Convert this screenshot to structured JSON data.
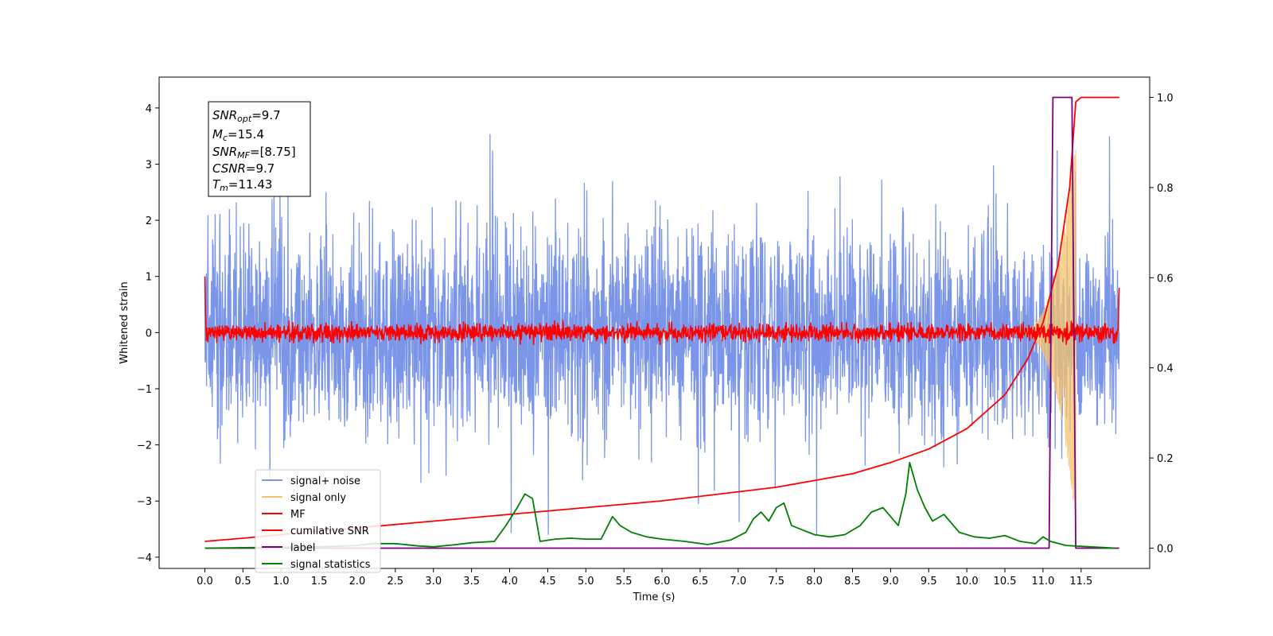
{
  "chart_data": {
    "type": "line",
    "xlabel": "Time (s)",
    "ylabel_left": "Whitened strain",
    "ylabel_right": "",
    "xlim": [
      -0.6,
      12.4
    ],
    "ylim_left": [
      -4.2,
      4.55
    ],
    "ylim_right": [
      -0.045,
      1.045
    ],
    "x_ticks": [
      0.0,
      0.5,
      1.0,
      1.5,
      2.0,
      2.5,
      3.0,
      3.5,
      4.0,
      4.5,
      5.0,
      5.5,
      6.0,
      6.5,
      7.0,
      7.5,
      8.0,
      8.5,
      9.0,
      9.5,
      10.0,
      10.5,
      11.0,
      11.5
    ],
    "x_tick_labels": [
      "0.0",
      "0.5",
      "1.0",
      "1.5",
      "2.0",
      "2.5",
      "3.0",
      "3.5",
      "4.0",
      "4.5",
      "5.0",
      "5.5",
      "6.0",
      "6.5",
      "7.0",
      "7.5",
      "8.0",
      "8.5",
      "9.0",
      "9.5",
      "10.0",
      "10.5",
      "11.0",
      "11.5"
    ],
    "y_ticks_left": [
      -4,
      -3,
      -2,
      -1,
      0,
      1,
      2,
      3,
      4
    ],
    "y_tick_labels_left": [
      "−4",
      "−3",
      "−2",
      "−1",
      "0",
      "1",
      "2",
      "3",
      "4"
    ],
    "y_ticks_right": [
      0.0,
      0.2,
      0.4,
      0.6,
      0.8,
      1.0
    ],
    "y_tick_labels_right": [
      "0.0",
      "0.2",
      "0.4",
      "0.6",
      "0.8",
      "1.0"
    ],
    "legend_position": "lower-left",
    "series": [
      {
        "name": "signal+ noise",
        "color": "#7b96e8",
        "axis": "left",
        "kind": "noise",
        "x_range": [
          0.0,
          12.0
        ],
        "amplitude_std": 0.9,
        "peak_max": 4.17,
        "peak_min": -3.6
      },
      {
        "name": "signal only",
        "color": "#f5c169",
        "axis": "left",
        "kind": "chirp",
        "x_range": [
          10.6,
          11.43
        ],
        "peak_amplitude": 3.4
      },
      {
        "name": "MF",
        "color": "#ff0000",
        "axis": "left",
        "kind": "noise",
        "x_range": [
          0.0,
          12.0
        ],
        "amplitude_std": 0.08,
        "start_value": 1.0,
        "end_value": 0.8
      },
      {
        "name": "cumilative SNR",
        "color": "#ff0000",
        "axis": "right",
        "x": [
          0.0,
          0.5,
          1.0,
          2.0,
          3.0,
          4.0,
          5.0,
          6.0,
          7.0,
          7.5,
          8.0,
          8.5,
          9.0,
          9.5,
          10.0,
          10.5,
          10.8,
          11.0,
          11.2,
          11.35,
          11.43,
          11.5,
          12.0
        ],
        "y": [
          0.015,
          0.022,
          0.03,
          0.045,
          0.06,
          0.075,
          0.09,
          0.105,
          0.125,
          0.135,
          0.15,
          0.165,
          0.19,
          0.22,
          0.265,
          0.34,
          0.42,
          0.5,
          0.63,
          0.8,
          0.99,
          1.0,
          1.0
        ]
      },
      {
        "name": "label",
        "color": "#7b007b",
        "axis": "right",
        "x": [
          0.0,
          11.08,
          11.13,
          11.38,
          11.43,
          12.0
        ],
        "y": [
          0.0,
          0.0,
          1.0,
          1.0,
          0.0,
          0.0
        ]
      },
      {
        "name": "signal statistics",
        "color": "#008000",
        "axis": "right",
        "x": [
          0.0,
          0.5,
          1.0,
          1.5,
          2.0,
          2.2,
          2.5,
          2.8,
          3.0,
          3.3,
          3.5,
          3.8,
          3.95,
          4.1,
          4.2,
          4.3,
          4.4,
          4.6,
          4.8,
          5.0,
          5.2,
          5.35,
          5.45,
          5.6,
          5.8,
          6.0,
          6.3,
          6.6,
          6.9,
          7.1,
          7.2,
          7.3,
          7.4,
          7.5,
          7.6,
          7.7,
          7.85,
          8.0,
          8.2,
          8.4,
          8.6,
          8.75,
          8.9,
          9.0,
          9.1,
          9.2,
          9.25,
          9.35,
          9.45,
          9.55,
          9.7,
          9.9,
          10.1,
          10.3,
          10.5,
          10.7,
          10.9,
          11.0,
          11.1,
          11.3,
          11.5,
          11.95
        ],
        "y": [
          0.0,
          0.001,
          0.002,
          0.003,
          0.006,
          0.01,
          0.01,
          0.005,
          0.003,
          0.008,
          0.012,
          0.015,
          0.05,
          0.09,
          0.12,
          0.11,
          0.015,
          0.02,
          0.022,
          0.02,
          0.02,
          0.07,
          0.05,
          0.035,
          0.025,
          0.02,
          0.015,
          0.008,
          0.018,
          0.035,
          0.065,
          0.08,
          0.06,
          0.09,
          0.1,
          0.05,
          0.04,
          0.03,
          0.025,
          0.03,
          0.05,
          0.08,
          0.09,
          0.07,
          0.05,
          0.12,
          0.19,
          0.13,
          0.09,
          0.06,
          0.075,
          0.035,
          0.025,
          0.022,
          0.028,
          0.015,
          0.01,
          0.025,
          0.015,
          0.006,
          0.004,
          0.0
        ]
      }
    ],
    "info_box": {
      "snr_opt": "9.7",
      "mc": "15.4",
      "snr_mf": "[8.75]",
      "csnr": "9.7",
      "tm": "11.43"
    }
  },
  "legend": {
    "items": [
      "signal+ noise",
      "signal only",
      "MF",
      "cumilative SNR",
      "label",
      "signal statistics"
    ]
  },
  "colors": {
    "noise": "#7b96e8",
    "signal": "#f5c169",
    "mf": "#ff0000",
    "label": "#7b007b",
    "stats": "#008000"
  }
}
